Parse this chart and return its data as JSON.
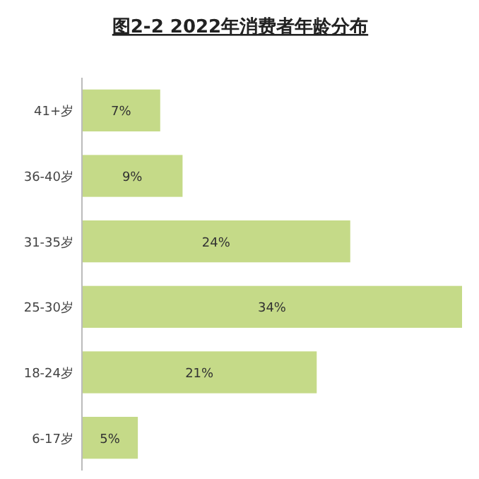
{
  "chart_data": {
    "type": "bar",
    "orientation": "horizontal",
    "title": "图2-2 2022年消费者年龄分布",
    "categories": [
      "41+岁",
      "36-40岁",
      "31-35岁",
      "25-30岁",
      "18-24岁",
      "6-17岁"
    ],
    "series": [
      {
        "color": "#c5da88",
        "values": [
          7,
          9,
          24,
          34,
          21,
          5
        ],
        "value_labels": [
          "7%",
          "9%",
          "24%",
          "34%",
          "21%",
          "5%"
        ]
      }
    ]
  }
}
